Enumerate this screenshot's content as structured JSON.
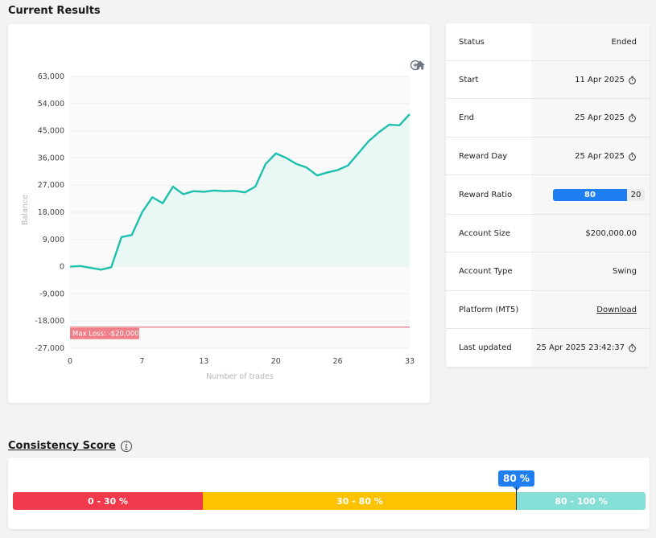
{
  "header": {
    "title": "Current Results"
  },
  "chart_data": {
    "type": "line",
    "xlabel": "Number of trades",
    "ylabel": "Balance",
    "ylim": [
      -27000,
      63000
    ],
    "xlim": [
      0,
      33
    ],
    "x_ticks": [
      0,
      7,
      13,
      20,
      26,
      33
    ],
    "y_ticks": [
      "63,000",
      "54,000",
      "45,000",
      "36,000",
      "27,000",
      "18,000",
      "9,000",
      "0",
      "-9,000",
      "-18,000",
      "-27,000"
    ],
    "y_tick_values": [
      63000,
      54000,
      45000,
      36000,
      27000,
      18000,
      9000,
      0,
      -9000,
      -18000,
      -27000
    ],
    "series": [
      {
        "x": [
          0,
          1,
          2,
          3,
          4,
          5,
          6,
          7,
          8,
          9,
          10,
          11,
          12,
          13,
          14,
          15,
          16,
          17,
          18,
          19,
          20,
          21,
          22,
          23,
          24,
          25,
          26,
          27,
          28,
          29,
          30,
          31,
          32,
          33
        ],
        "values": [
          0,
          200,
          -400,
          -1000,
          -200,
          9800,
          10500,
          18000,
          23000,
          21000,
          26500,
          24000,
          25000,
          24800,
          25200,
          25000,
          25100,
          24600,
          26500,
          34000,
          37500,
          36000,
          34000,
          32800,
          30200,
          31200,
          32000,
          33500,
          37500,
          41500,
          44500,
          47000,
          46800,
          50500
        ]
      }
    ],
    "reference_line": {
      "value": -20000,
      "label": "Max Loss: -$20,000",
      "color": "#ef8f97"
    },
    "line_color": "#1fbfad",
    "area_color": "#eaf8f5",
    "grid": true
  },
  "toolbar": {
    "zoom_in_icon": "zoom-in-icon",
    "zoom_out_icon": "zoom-out-icon",
    "home_icon": "home-icon"
  },
  "status": {
    "rows": [
      {
        "label": "Status",
        "value": "Ended"
      },
      {
        "label": "Start",
        "value": "11 Apr 2025"
      },
      {
        "label": "End",
        "value": "25 Apr 2025"
      },
      {
        "label": "Reward Day",
        "value": "25 Apr 2025"
      },
      {
        "label": "Reward Ratio",
        "value_left": "80",
        "value_right": "20"
      },
      {
        "label": "Account Size",
        "value": "$200,000.00"
      },
      {
        "label": "Account Type",
        "value": "Swing"
      },
      {
        "label": "Platform (MT5)",
        "value": "Download"
      },
      {
        "label": "Last updated",
        "value": "25 Apr 2025 23:42:37"
      }
    ]
  },
  "consistency": {
    "title": "Consistency Score",
    "info_icon": "i",
    "score": "80 %",
    "segments": [
      {
        "label": "0 - 30 %",
        "color": "#f0394b"
      },
      {
        "label": "30 - 80 %",
        "color": "#fdc300"
      },
      {
        "label": "80 - 100 %",
        "color": "#86dfd6"
      }
    ]
  }
}
